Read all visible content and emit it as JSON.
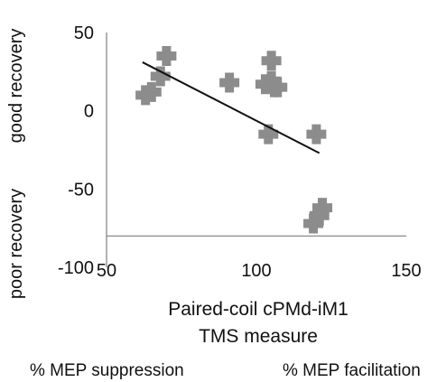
{
  "chart_data": {
    "type": "scatter",
    "x": [
      63,
      65,
      68,
      70,
      91,
      103,
      105,
      105,
      107,
      106,
      104,
      120,
      119,
      121,
      122
    ],
    "y": [
      10,
      12,
      22,
      35,
      18,
      17,
      19,
      32,
      15,
      15,
      -15,
      -15,
      -72,
      -67,
      -62
    ],
    "xlim": [
      50,
      150
    ],
    "ylim": [
      -100,
      50
    ],
    "xticks": [
      "50",
      "100",
      "150"
    ],
    "yticks": [
      "50",
      "0",
      "-50",
      "-100"
    ],
    "x_axis_crosses_y": -80,
    "xlabel_line1": "Paired-coil cPMd-iM1",
    "xlabel_line2": "TMS measure",
    "ylabel_bottom": "poor recovery",
    "ylabel_top": "good recovery",
    "note_left": "% MEP suppression",
    "note_right": "% MEP facilitation",
    "trendline": {
      "x": [
        62,
        121
      ],
      "y": [
        31,
        -27
      ]
    },
    "marker_color": "#8c8c8c",
    "trend_color": "#111111",
    "grid": false,
    "legend": "none"
  }
}
